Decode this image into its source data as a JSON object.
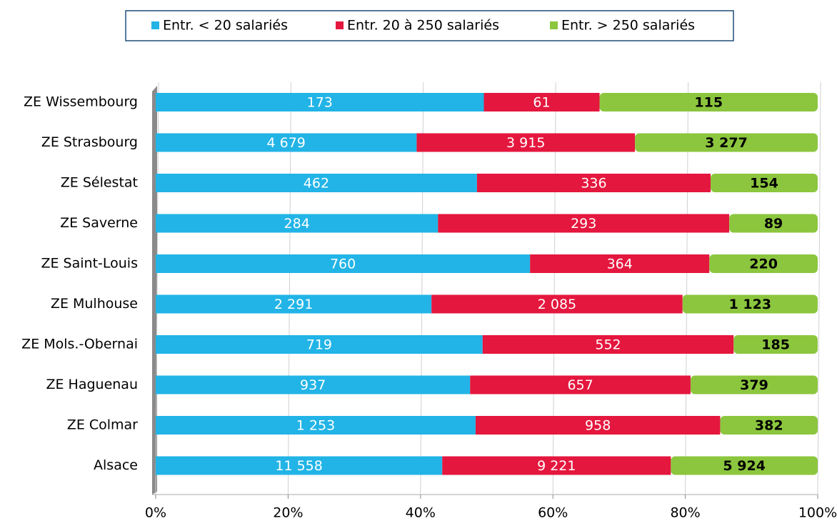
{
  "chart_data": {
    "type": "bar",
    "orientation": "horizontal",
    "stacked": "percent",
    "categories": [
      "ZE Wissembourg",
      "ZE Strasbourg",
      "ZE Sélestat",
      "ZE Saverne",
      "ZE Saint-Louis",
      "ZE Mulhouse",
      "ZE Mols.-Obernai",
      "ZE Haguenau",
      "ZE Colmar",
      "Alsace"
    ],
    "series": [
      {
        "name": "Entr. < 20 salariés",
        "color": "#22b4e6",
        "values": [
          173,
          4679,
          462,
          284,
          760,
          2291,
          719,
          937,
          1253,
          11558
        ],
        "value_labels": [
          "173",
          "4 679",
          "462",
          "284",
          "760",
          "2 291",
          "719",
          "937",
          "1 253",
          "11 558"
        ]
      },
      {
        "name": "Entr. 20 à 250 salariés",
        "color": "#e4173e",
        "values": [
          61,
          3915,
          336,
          293,
          364,
          2085,
          552,
          657,
          958,
          9221
        ],
        "value_labels": [
          "61",
          "3 915",
          "336",
          "293",
          "364",
          "2 085",
          "552",
          "657",
          "958",
          "9 221"
        ]
      },
      {
        "name": "Entr. > 250 salariés",
        "color": "#8cc63e",
        "values": [
          115,
          3277,
          154,
          89,
          220,
          1123,
          185,
          379,
          382,
          5924
        ],
        "value_labels": [
          "115",
          "3 277",
          "154",
          "89",
          "220",
          "1 123",
          "185",
          "379",
          "382",
          "5 924"
        ]
      }
    ],
    "xlim": [
      0,
      100
    ],
    "xticks": [
      {
        "value": 0,
        "label": "0%"
      },
      {
        "value": 20,
        "label": "20%"
      },
      {
        "value": 40,
        "label": "40%"
      },
      {
        "value": 60,
        "label": "60%"
      },
      {
        "value": 80,
        "label": "80%"
      },
      {
        "value": 100,
        "label": "100%"
      }
    ],
    "grid": true,
    "legend": "top"
  }
}
